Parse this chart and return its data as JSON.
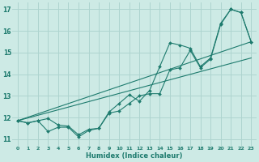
{
  "xlabel": "Humidex (Indice chaleur)",
  "bg_color": "#cdeae5",
  "grid_color": "#aed4cf",
  "line_color": "#1e7b6e",
  "xlim": [
    -0.5,
    23.5
  ],
  "ylim": [
    10.7,
    17.3
  ],
  "yticks": [
    11,
    12,
    13,
    14,
    15,
    16,
    17
  ],
  "xticks": [
    0,
    1,
    2,
    3,
    4,
    5,
    6,
    7,
    8,
    9,
    10,
    11,
    12,
    13,
    14,
    15,
    16,
    17,
    18,
    19,
    20,
    21,
    22,
    23
  ],
  "line1_x": [
    0,
    1,
    2,
    3,
    4,
    5,
    6,
    7,
    8,
    9,
    10,
    11,
    12,
    13,
    14,
    15,
    16,
    17,
    18,
    19,
    20,
    21,
    22,
    23
  ],
  "line1_y": [
    11.85,
    11.75,
    11.85,
    11.95,
    11.65,
    11.6,
    11.2,
    11.45,
    11.5,
    12.25,
    12.65,
    13.05,
    12.75,
    13.25,
    14.35,
    15.45,
    15.35,
    15.2,
    14.35,
    14.75,
    16.35,
    17.0,
    16.85,
    15.5
  ],
  "line2_x": [
    0,
    1,
    2,
    3,
    4,
    5,
    6,
    7,
    8,
    9,
    10,
    11,
    12,
    13,
    14,
    15,
    16,
    17,
    18,
    19,
    20,
    21,
    22,
    23
  ],
  "line2_y": [
    11.85,
    11.75,
    11.85,
    11.35,
    11.55,
    11.55,
    11.1,
    11.4,
    11.5,
    12.2,
    12.3,
    12.65,
    13.0,
    13.1,
    13.1,
    14.2,
    14.3,
    15.1,
    14.3,
    14.7,
    16.3,
    17.0,
    16.85,
    15.5
  ],
  "trend1_x": [
    0,
    23
  ],
  "trend1_y": [
    11.85,
    15.5
  ],
  "trend2_x": [
    0,
    23
  ],
  "trend2_y": [
    11.85,
    14.75
  ]
}
